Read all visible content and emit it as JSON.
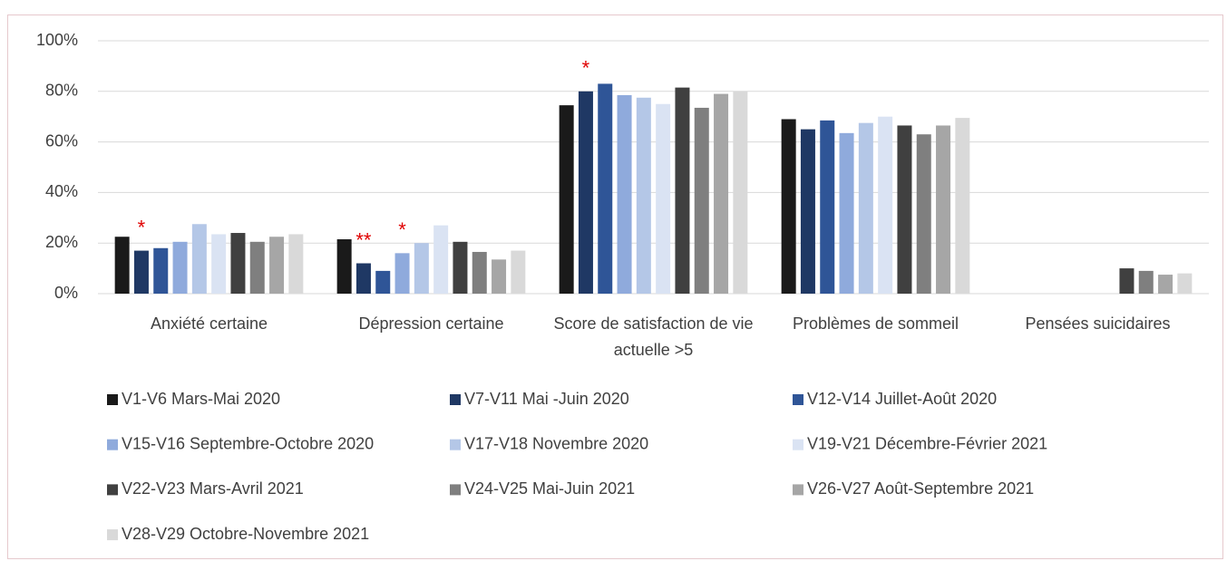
{
  "chart_data": {
    "type": "bar",
    "categories": [
      "Anxiété certaine",
      "Dépression certaine",
      "Score de satisfaction de vie actuelle >5",
      "Problèmes de sommeil",
      "Pensées suicidaires"
    ],
    "series": [
      {
        "name": "V1-V6 Mars-Mai 2020",
        "color": "#1a1a1a",
        "values": [
          22.5,
          21.5,
          74.5,
          69,
          null
        ]
      },
      {
        "name": "V7-V11 Mai -Juin 2020",
        "color": "#1f3864",
        "values": [
          17,
          12,
          80,
          65,
          null
        ]
      },
      {
        "name": "V12-V14 Juillet-Août 2020",
        "color": "#2f5597",
        "values": [
          18,
          9,
          83,
          68.5,
          null
        ]
      },
      {
        "name": "V15-V16 Septembre-Octobre 2020",
        "color": "#8faadc",
        "values": [
          20.5,
          16,
          78.5,
          63.5,
          null
        ]
      },
      {
        "name": "V17-V18 Novembre 2020",
        "color": "#b4c7e7",
        "values": [
          27.5,
          20,
          77.5,
          67.5,
          null
        ]
      },
      {
        "name": "V19-V21 Décembre-Février 2021",
        "color": "#dae3f3",
        "values": [
          23.5,
          27,
          75,
          70,
          null
        ]
      },
      {
        "name": "V22-V23 Mars-Avril 2021",
        "color": "#404040",
        "values": [
          24,
          20.5,
          81.5,
          66.5,
          10
        ]
      },
      {
        "name": "V24-V25 Mai-Juin 2021",
        "color": "#7f7f7f",
        "values": [
          20.5,
          16.5,
          73.5,
          63,
          9
        ]
      },
      {
        "name": "V26-V27 Août-Septembre 2021",
        "color": "#a6a6a6",
        "values": [
          22.5,
          13.5,
          79,
          66.5,
          7.5
        ]
      },
      {
        "name": "V28-V29 Octobre-Novembre 2021",
        "color": "#d9d9d9",
        "values": [
          23.5,
          17,
          80,
          69.5,
          8
        ]
      }
    ],
    "ylim": [
      0,
      100
    ],
    "yticks": [
      {
        "value": 0,
        "label": "0%"
      },
      {
        "value": 20,
        "label": "20%"
      },
      {
        "value": 40,
        "label": "40%"
      },
      {
        "value": 60,
        "label": "60%"
      },
      {
        "value": 80,
        "label": "80%"
      },
      {
        "value": 100,
        "label": "100%"
      }
    ],
    "grid": true,
    "legend": "bottom",
    "annotations": [
      {
        "text": "*",
        "category": "Anxiété certaine",
        "series": "V7-V11 Mai -Juin 2020",
        "color": "#e00000"
      },
      {
        "text": "**",
        "category": "Dépression certaine",
        "series": "V7-V11 Mai -Juin 2020",
        "color": "#e00000"
      },
      {
        "text": "*",
        "category": "Dépression certaine",
        "series": "V15-V16 Septembre-Octobre 2020",
        "color": "#e00000"
      },
      {
        "text": "*",
        "category": "Score de satisfaction de vie actuelle >5",
        "series": "V7-V11 Mai -Juin 2020",
        "color": "#e00000"
      }
    ]
  }
}
